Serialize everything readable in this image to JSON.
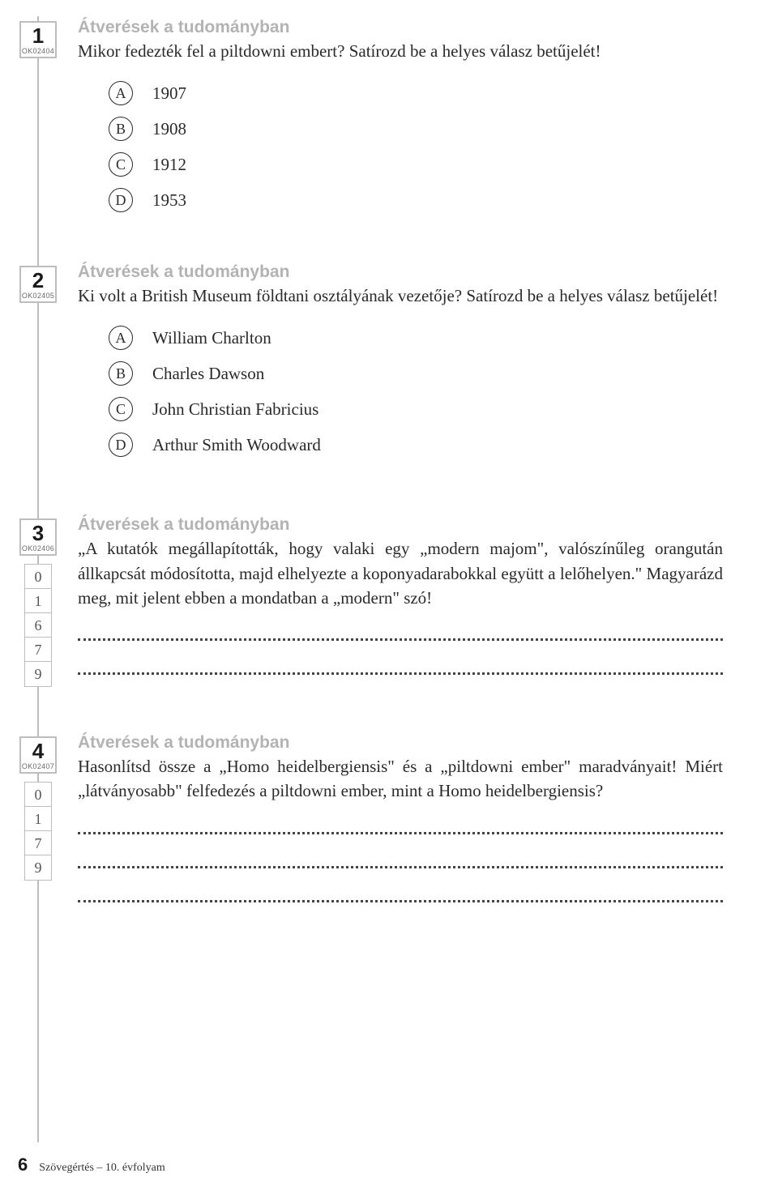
{
  "category_label": "Átverések a tudományban",
  "questions": [
    {
      "num": "1",
      "code": "OK02404",
      "text": "Mikor fedezték fel a piltdowni embert? Satírozd be a helyes válasz betűjelét!",
      "type": "mc",
      "options": [
        {
          "letter": "A",
          "label": "1907"
        },
        {
          "letter": "B",
          "label": "1908"
        },
        {
          "letter": "C",
          "label": "1912"
        },
        {
          "letter": "D",
          "label": "1953"
        }
      ]
    },
    {
      "num": "2",
      "code": "OK02405",
      "text": "Ki volt a British Museum földtani osztályának vezetője? Satírozd be a helyes válasz betűjelét!",
      "type": "mc",
      "options": [
        {
          "letter": "A",
          "label": "William Charlton"
        },
        {
          "letter": "B",
          "label": "Charles Dawson"
        },
        {
          "letter": "C",
          "label": "John Christian Fabricius"
        },
        {
          "letter": "D",
          "label": "Arthur Smith Woodward"
        }
      ]
    },
    {
      "num": "3",
      "code": "OK02406",
      "text": "„A kutatók megállapították, hogy valaki egy „modern majom\", valószínűleg orangután állkapcsát módosította, majd elhelyezte a koponyadarabokkal együtt a lelőhelyen.\" Magyarázd meg, mit jelent ebben a mondatban a „modern\" szó!",
      "type": "open",
      "lines": 2,
      "scores": [
        "0",
        "1",
        "6",
        "7",
        "9"
      ]
    },
    {
      "num": "4",
      "code": "OK02407",
      "text": "Hasonlítsd össze a „Homo heidelbergiensis\" és a „piltdowni ember\" maradványait! Miért „látványosabb\" felfedezés a piltdowni ember, mint a Homo heidelbergiensis?",
      "type": "open",
      "lines": 3,
      "scores": [
        "0",
        "1",
        "7",
        "9"
      ]
    }
  ],
  "footer": {
    "page": "6",
    "label": "Szövegértés – 10. évfolyam"
  }
}
